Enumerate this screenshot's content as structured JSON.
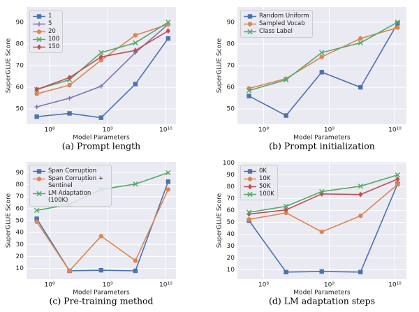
{
  "chart_data": [
    {
      "type": "line",
      "title": "(a) Prompt length",
      "xlabel": "Model Parameters",
      "ylabel": "SuperGLUE Score",
      "xscale": "log",
      "grid": true,
      "legend": "upper left",
      "background": "#eaeaf2",
      "x": [
        60000000,
        220000000,
        770000000,
        3000000000,
        11000000000
      ],
      "xlim": [
        40000000,
        15000000000
      ],
      "xticks": [
        {
          "value": 100000000,
          "label": "10⁸"
        },
        {
          "value": 1000000000,
          "label": "10⁹"
        },
        {
          "value": 10000000000,
          "label": "10¹⁰"
        }
      ],
      "ylim": [
        43,
        97
      ],
      "yticks": [
        50,
        60,
        70,
        80,
        90
      ],
      "series": [
        {
          "name": "1",
          "color": "#4c72b0",
          "marker": "square",
          "values": [
            46.5,
            48,
            46,
            61.5,
            82.5
          ]
        },
        {
          "name": "5",
          "color": "#8172b3",
          "marker": "plus",
          "values": [
            51,
            55,
            60.5,
            76,
            89
          ]
        },
        {
          "name": "20",
          "color": "#dd8452",
          "marker": "circle",
          "values": [
            57,
            61,
            72.5,
            84,
            89
          ]
        },
        {
          "name": "100",
          "color": "#55a868",
          "marker": "x",
          "values": [
            59,
            63.5,
            76,
            80.5,
            90
          ]
        },
        {
          "name": "150",
          "color": "#c44e52",
          "marker": "diamond",
          "values": [
            59,
            64.5,
            74,
            77,
            86
          ]
        }
      ]
    },
    {
      "type": "line",
      "title": "(b) Prompt initialization",
      "xlabel": "Model Parameters",
      "ylabel": "SuperGLUE Score",
      "xscale": "log",
      "grid": true,
      "legend": "upper left",
      "background": "#eaeaf2",
      "x": [
        60000000,
        220000000,
        770000000,
        3000000000,
        11000000000
      ],
      "xlim": [
        40000000,
        15000000000
      ],
      "xticks": [
        {
          "value": 100000000,
          "label": "10⁸"
        },
        {
          "value": 1000000000,
          "label": "10⁹"
        },
        {
          "value": 10000000000,
          "label": "10¹⁰"
        }
      ],
      "ylim": [
        43,
        97
      ],
      "yticks": [
        50,
        60,
        70,
        80,
        90
      ],
      "series": [
        {
          "name": "Random Uniform",
          "color": "#4c72b0",
          "marker": "square",
          "values": [
            56,
            47,
            67,
            60,
            89.5
          ]
        },
        {
          "name": "Sampled Vocab",
          "color": "#dd8452",
          "marker": "circle",
          "values": [
            59.5,
            64,
            74,
            82.5,
            87.5
          ]
        },
        {
          "name": "Class Label",
          "color": "#55a868",
          "marker": "x",
          "values": [
            58.5,
            63.5,
            76,
            80.5,
            90
          ]
        }
      ]
    },
    {
      "type": "line",
      "title": "(c) Pre-training method",
      "xlabel": "Model Parameters",
      "ylabel": "SuperGLUE Score",
      "xscale": "log",
      "grid": true,
      "legend": "upper left",
      "background": "#eaeaf2",
      "x": [
        60000000,
        220000000,
        770000000,
        3000000000,
        11000000000
      ],
      "xlim": [
        40000000,
        15000000000
      ],
      "xticks": [
        {
          "value": 100000000,
          "label": "10⁸"
        },
        {
          "value": 1000000000,
          "label": "10⁹"
        },
        {
          "value": 10000000000,
          "label": "10¹⁰"
        }
      ],
      "ylim": [
        1,
        99
      ],
      "yticks": [
        10,
        20,
        30,
        40,
        50,
        60,
        70,
        80,
        90
      ],
      "series": [
        {
          "name": "Span Corruption",
          "color": "#4c72b0",
          "marker": "square",
          "values": [
            51.5,
            8,
            8.5,
            8,
            82.5
          ]
        },
        {
          "name": "Span Corruption + Sentinel",
          "color": "#dd8452",
          "marker": "circle",
          "values": [
            49,
            8,
            37,
            16.5,
            76
          ]
        },
        {
          "name": "LM Adaptation (100K)",
          "color": "#55a868",
          "marker": "x",
          "values": [
            58.5,
            63.5,
            76,
            80.5,
            90
          ]
        }
      ]
    },
    {
      "type": "line",
      "title": "(d) LM adaptation steps",
      "xlabel": "Model Parameters",
      "ylabel": "SuperGLUE Score",
      "xscale": "log",
      "grid": true,
      "legend": "upper left",
      "background": "#eaeaf2",
      "x": [
        60000000,
        220000000,
        770000000,
        3000000000,
        11000000000
      ],
      "xlim": [
        40000000,
        15000000000
      ],
      "xticks": [
        {
          "value": 100000000,
          "label": "10⁸"
        },
        {
          "value": 1000000000,
          "label": "10⁹"
        },
        {
          "value": 10000000000,
          "label": "10¹⁰"
        }
      ],
      "ylim": [
        2,
        101
      ],
      "yticks": [
        10,
        20,
        30,
        40,
        50,
        60,
        70,
        80,
        90,
        100
      ],
      "series": [
        {
          "name": "0K",
          "color": "#4c72b0",
          "marker": "square",
          "values": [
            51.5,
            8,
            8.5,
            8,
            82.5
          ]
        },
        {
          "name": "10K",
          "color": "#dd8452",
          "marker": "circle",
          "values": [
            52.5,
            58,
            42,
            55.5,
            82
          ]
        },
        {
          "name": "50K",
          "color": "#c44e52",
          "marker": "diamond",
          "values": [
            57,
            60.5,
            74,
            73.5,
            86.5
          ]
        },
        {
          "name": "100K",
          "color": "#55a868",
          "marker": "x",
          "values": [
            58.5,
            63.5,
            76,
            80.5,
            90
          ]
        }
      ]
    }
  ]
}
